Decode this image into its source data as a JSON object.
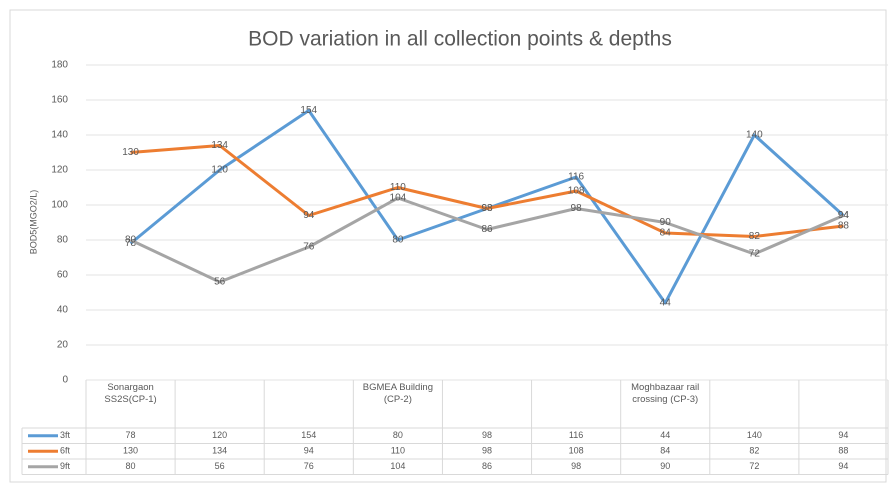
{
  "chart_data": {
    "type": "line",
    "title": "BOD variation in all collection points & depths",
    "y_label": "BOD5(MGO2/L)",
    "categories": [
      "Sonargaon SS2S(CP-1)",
      null,
      null,
      "BGMEA Building (CP-2)",
      null,
      null,
      "Moghbazaar rail crossing (CP-3)",
      null,
      null
    ],
    "series": [
      {
        "name": "3ft",
        "color": "#5b9bd5",
        "values": [
          78,
          120,
          154,
          80,
          98,
          116,
          44,
          140,
          94
        ]
      },
      {
        "name": "6ft",
        "color": "#ed7d31",
        "values": [
          130,
          134,
          94,
          110,
          98,
          108,
          84,
          82,
          88
        ]
      },
      {
        "name": "9ft",
        "color": "#a5a5a5",
        "values": [
          80,
          56,
          76,
          104,
          86,
          98,
          90,
          72,
          94
        ]
      }
    ],
    "ylim": [
      0,
      180
    ],
    "yticks": [
      0,
      20,
      40,
      60,
      80,
      100,
      120,
      140,
      160,
      180
    ],
    "grid": true
  }
}
